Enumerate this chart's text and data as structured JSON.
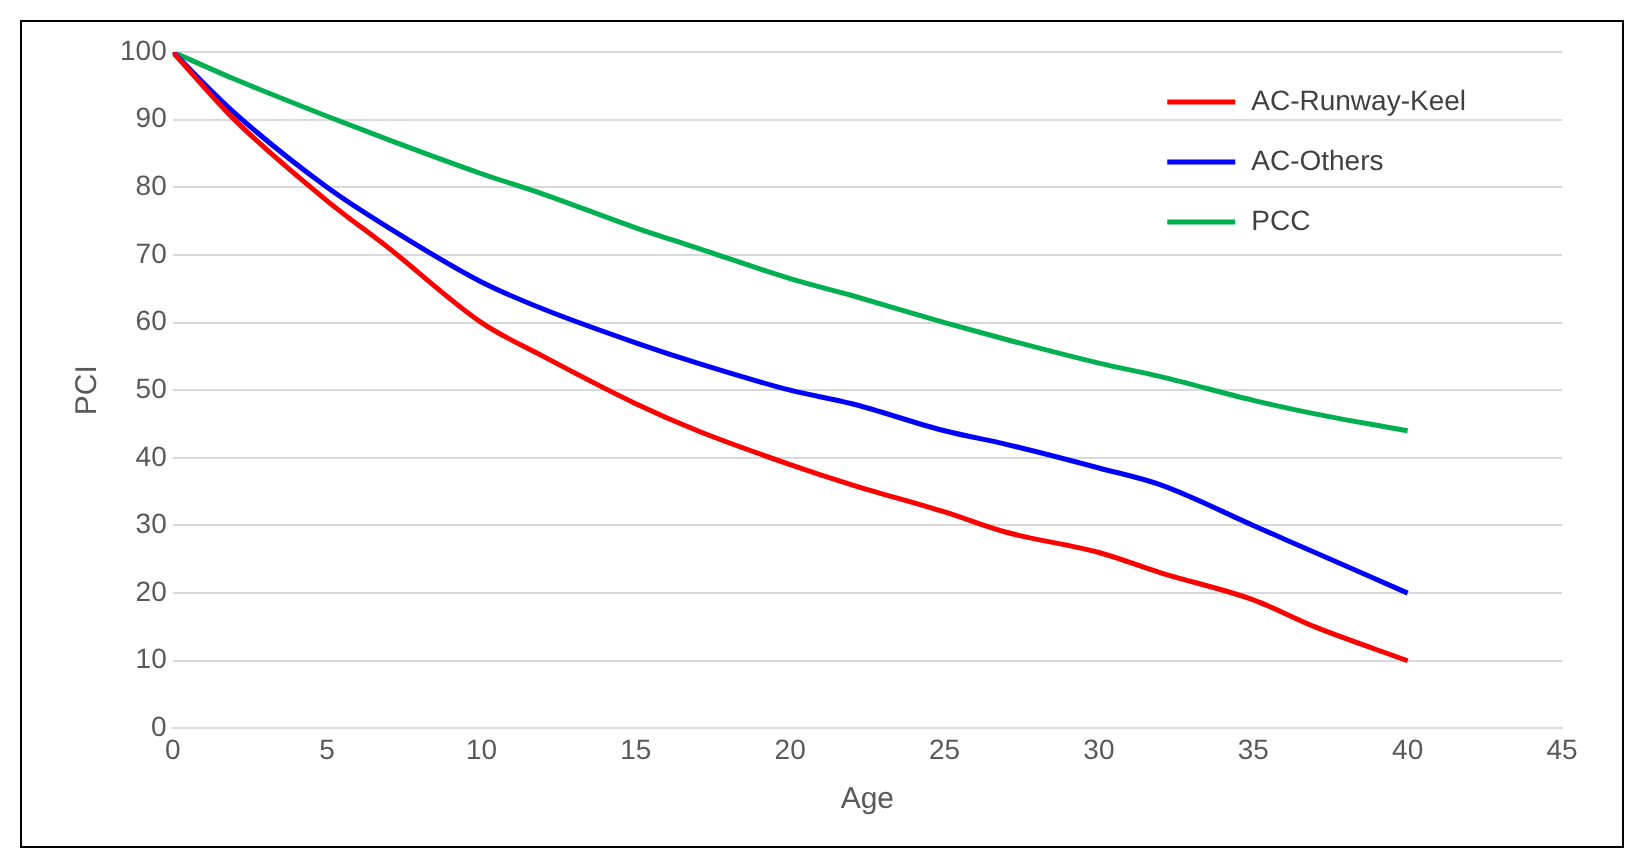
{
  "chart_data": {
    "type": "line",
    "xlabel": "Age",
    "ylabel": "PCI",
    "x": [
      0,
      2,
      5,
      7,
      10,
      12,
      15,
      17,
      20,
      22,
      25,
      27,
      30,
      32,
      35,
      37,
      40
    ],
    "series": [
      {
        "name": "AC-Runway-Keel",
        "color": "#ff0000",
        "values": [
          100,
          90,
          78,
          71,
          60,
          55,
          48,
          44,
          39,
          36,
          32,
          29,
          26,
          23,
          19,
          15,
          10
        ]
      },
      {
        "name": "AC-Others",
        "color": "#0000ff",
        "values": [
          100,
          91,
          80,
          74,
          66,
          62,
          57,
          54,
          50,
          48,
          44,
          42,
          38.5,
          36,
          30,
          26,
          20
        ]
      },
      {
        "name": "PCC",
        "color": "#00b050",
        "values": [
          100,
          96,
          90.5,
          87,
          82,
          79,
          74,
          71,
          66.5,
          64,
          60,
          57.5,
          54,
          52,
          48.5,
          46.5,
          44
        ]
      }
    ],
    "xlim": [
      0,
      45
    ],
    "xticks": [
      0,
      5,
      10,
      15,
      20,
      25,
      30,
      35,
      40,
      45
    ],
    "ylim": [
      0,
      100
    ],
    "yticks": [
      0,
      10,
      20,
      30,
      40,
      50,
      60,
      70,
      80,
      90,
      100
    ],
    "grid": "y",
    "legend": "top right",
    "marker": "none",
    "line_style": "solid"
  }
}
